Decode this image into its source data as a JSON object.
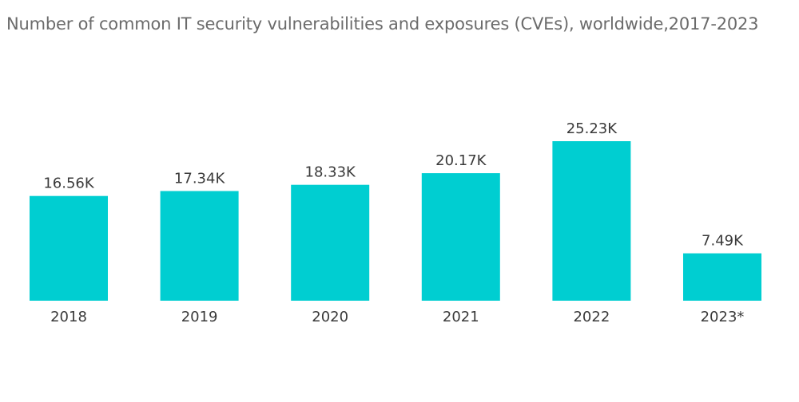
{
  "chart_data": {
    "type": "bar",
    "title": "Number of common IT security vulnerabilities and exposures (CVEs), worldwide,2017-2023",
    "categories": [
      "2018",
      "2019",
      "2020",
      "2021",
      "2022",
      "2023*"
    ],
    "values": [
      16.56,
      17.34,
      18.33,
      20.17,
      25.23,
      7.49
    ],
    "value_labels": [
      "16.56K",
      "17.34K",
      "18.33K",
      "20.17K",
      "25.23K",
      "7.49K"
    ],
    "unit": "K",
    "xlabel": "",
    "ylabel": "",
    "ylim": [
      0,
      25.23
    ],
    "grid": false,
    "legend": "none",
    "bar_color": "#00CED1"
  }
}
